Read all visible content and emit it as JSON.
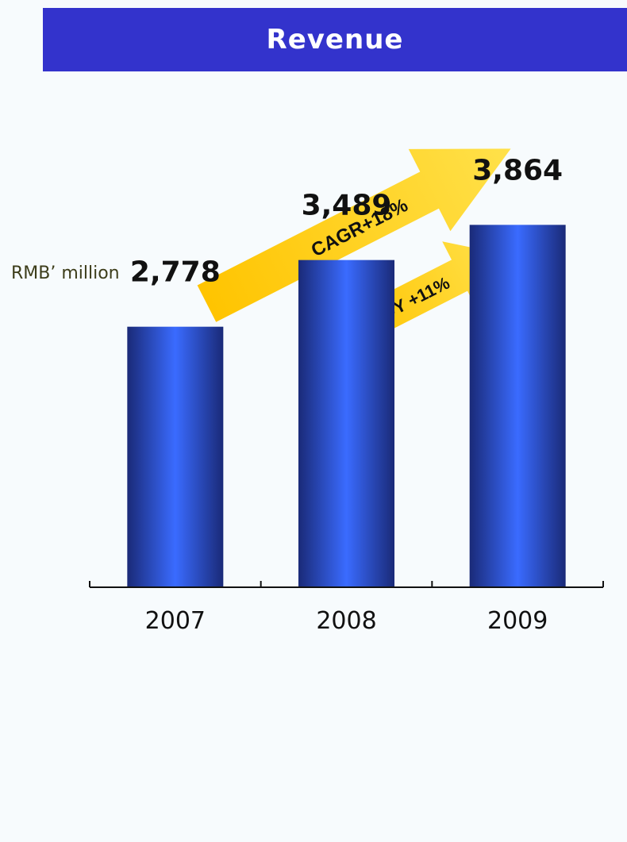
{
  "chart_data": {
    "type": "bar",
    "title": "Revenue",
    "ylabel": "RMB’ million",
    "xlabel": "",
    "categories": [
      "2007",
      "2008",
      "2009"
    ],
    "values": [
      2778,
      3489,
      3864
    ],
    "value_labels": [
      "2,778",
      "3,489",
      "3,864"
    ],
    "ylim": [
      0,
      5500
    ],
    "grid": false,
    "annotations": [
      {
        "text": "CAGR+18%"
      },
      {
        "text": "YOY +11%"
      }
    ],
    "colors": {
      "title_band": "#3333cc",
      "bar_edge": "#1a2a78",
      "bar_center": "#3a6bff",
      "arrow": "#ffcc00"
    }
  }
}
